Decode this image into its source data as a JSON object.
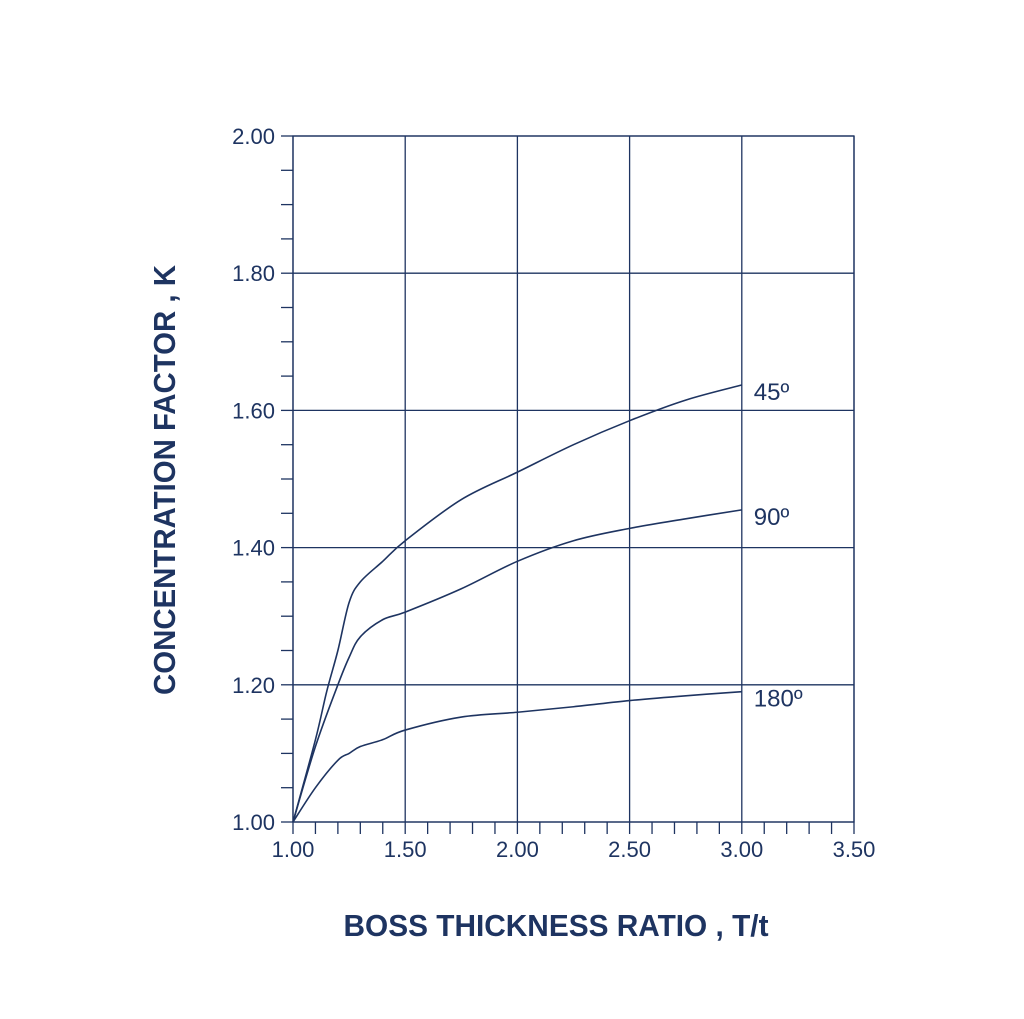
{
  "chart_data": {
    "type": "line",
    "title": "",
    "xlabel": "BOSS THICKNESS RATIO , T/t",
    "ylabel": "CONCENTRATION FACTOR , K",
    "xlim": [
      1.0,
      3.5
    ],
    "ylim": [
      1.0,
      2.0
    ],
    "x_ticks": [
      "1.00",
      "1.50",
      "2.00",
      "2.50",
      "3.00",
      "3.50"
    ],
    "y_ticks": [
      "1.00",
      "1.20",
      "1.40",
      "1.60",
      "1.80",
      "2.00"
    ],
    "x_minor_step": 0.1,
    "y_minor_step": 0.05,
    "grid": true,
    "color": "#1e3461",
    "series": [
      {
        "name": "45º",
        "x": [
          1.0,
          1.1,
          1.15,
          1.2,
          1.25,
          1.3,
          1.4,
          1.5,
          1.75,
          2.0,
          2.25,
          2.5,
          2.75,
          3.0
        ],
        "y": [
          1.0,
          1.12,
          1.19,
          1.25,
          1.32,
          1.35,
          1.38,
          1.41,
          1.47,
          1.51,
          1.55,
          1.585,
          1.615,
          1.637
        ]
      },
      {
        "name": "90º",
        "x": [
          1.0,
          1.1,
          1.2,
          1.25,
          1.3,
          1.4,
          1.5,
          1.75,
          2.0,
          2.25,
          2.5,
          2.75,
          3.0
        ],
        "y": [
          1.0,
          1.11,
          1.2,
          1.24,
          1.27,
          1.295,
          1.306,
          1.34,
          1.38,
          1.41,
          1.428,
          1.442,
          1.455
        ]
      },
      {
        "name": "180º",
        "x": [
          1.0,
          1.1,
          1.2,
          1.25,
          1.3,
          1.4,
          1.5,
          1.75,
          2.0,
          2.25,
          2.5,
          2.75,
          3.0
        ],
        "y": [
          1.0,
          1.05,
          1.09,
          1.1,
          1.11,
          1.12,
          1.134,
          1.153,
          1.16,
          1.168,
          1.177,
          1.184,
          1.19
        ]
      }
    ]
  }
}
